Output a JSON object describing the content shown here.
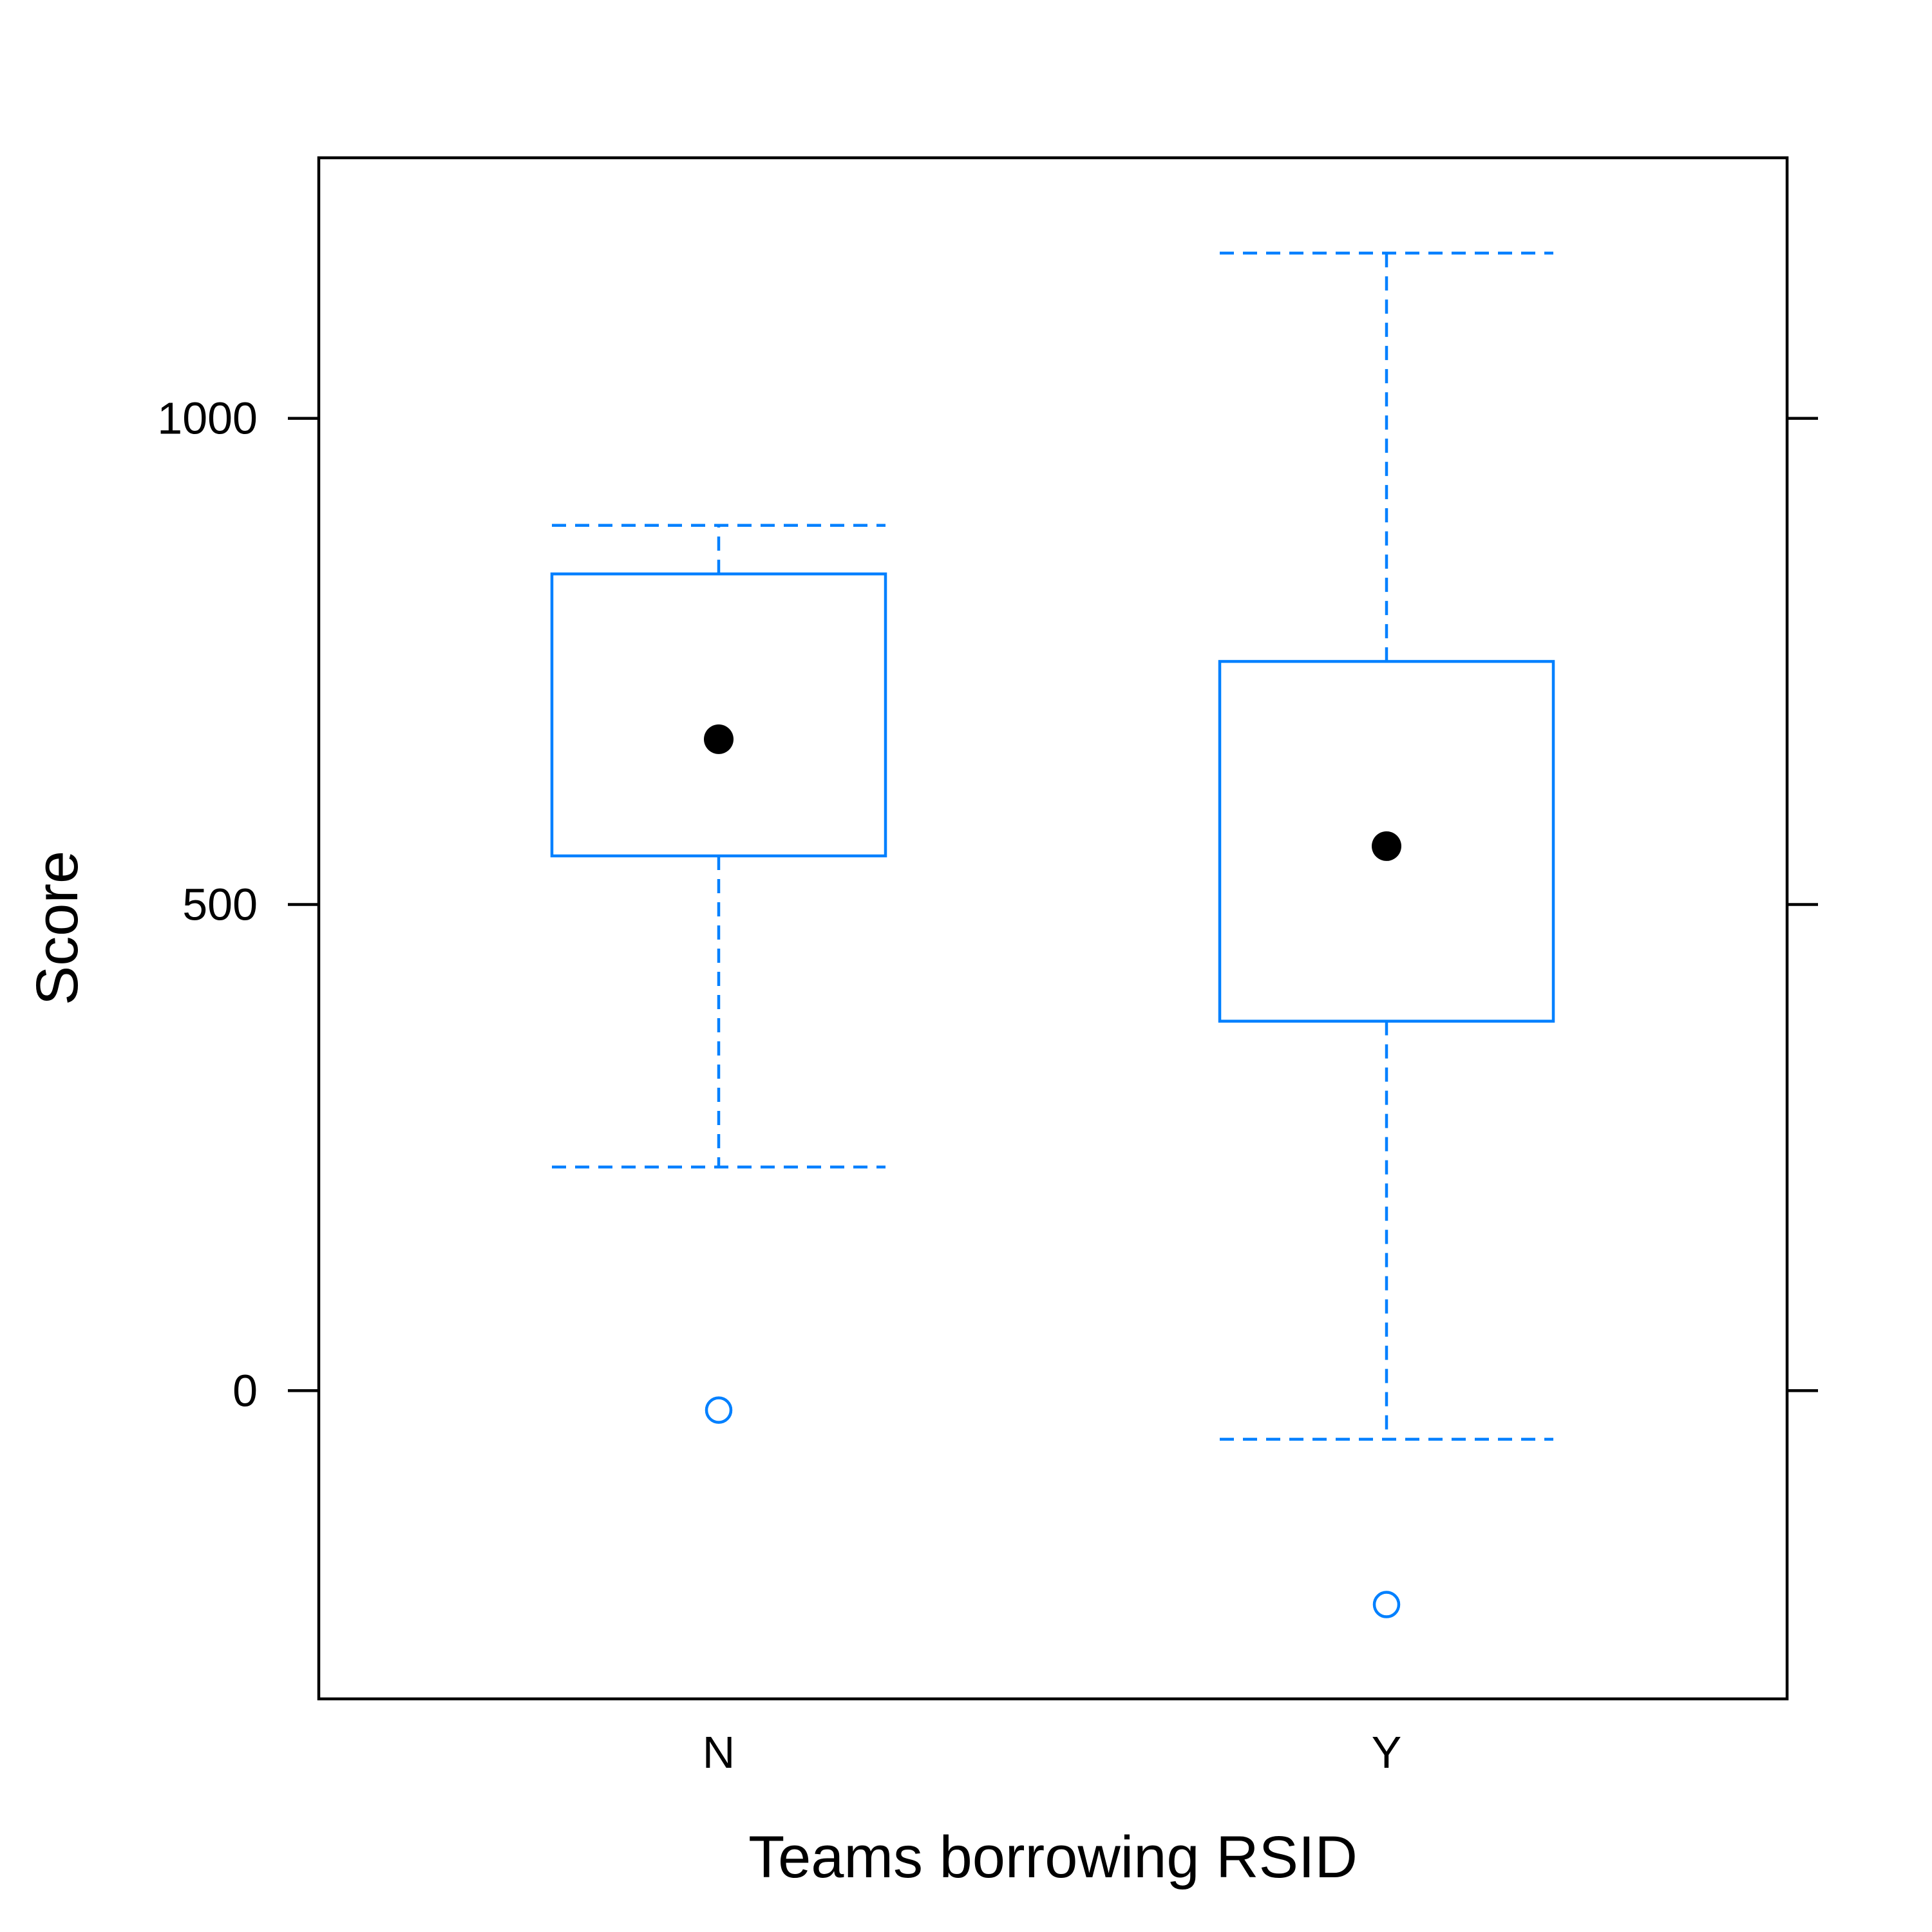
{
  "chart_data": {
    "type": "box",
    "xlabel": "Teams borrowing RSID",
    "ylabel": "Score",
    "categories": [
      "N",
      "Y"
    ],
    "ylim": [
      -317,
      1268
    ],
    "yticks": [
      {
        "value": 0,
        "label": "0"
      },
      {
        "value": 500,
        "label": "500"
      },
      {
        "value": 1000,
        "label": "1000"
      }
    ],
    "boxes": [
      {
        "category": "N",
        "whisker_low": 230,
        "q1": 550,
        "median": 670,
        "q3": 840,
        "whisker_high": 890,
        "outliers": [
          -20
        ]
      },
      {
        "category": "Y",
        "whisker_low": -50,
        "q1": 380,
        "median": 560,
        "q3": 750,
        "whisker_high": 1170,
        "outliers": [
          -220
        ]
      }
    ],
    "colors": {
      "box": "#0080ff",
      "median": "#000000",
      "frame": "#000000"
    }
  }
}
